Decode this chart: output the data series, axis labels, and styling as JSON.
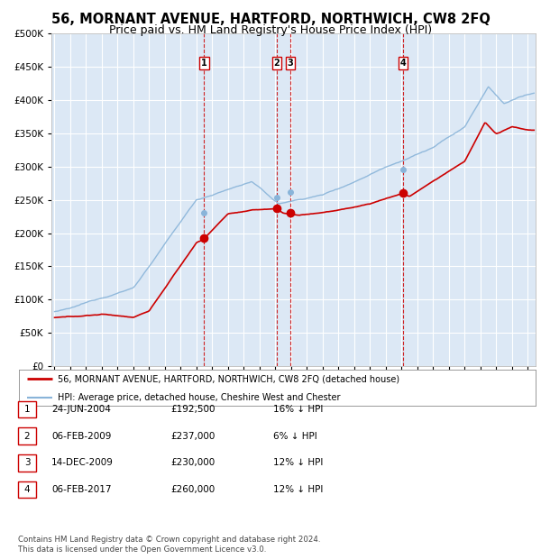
{
  "title": "56, MORNANT AVENUE, HARTFORD, NORTHWICH, CW8 2FQ",
  "subtitle": "Price paid vs. HM Land Registry's House Price Index (HPI)",
  "title_fontsize": 10.5,
  "subtitle_fontsize": 9,
  "background_color": "#ffffff",
  "plot_bg_color": "#dce8f5",
  "grid_color": "#ffffff",
  "red_line_color": "#cc0000",
  "blue_line_color": "#89b4d9",
  "legend_entries": [
    "56, MORNANT AVENUE, HARTFORD, NORTHWICH, CW8 2FQ (detached house)",
    "HPI: Average price, detached house, Cheshire West and Chester"
  ],
  "sale_points": [
    {
      "label": "1",
      "date_decimal": 2004.48,
      "price": 192500
    },
    {
      "label": "2",
      "date_decimal": 2009.09,
      "price": 237000
    },
    {
      "label": "3",
      "date_decimal": 2009.95,
      "price": 230000
    },
    {
      "label": "4",
      "date_decimal": 2017.09,
      "price": 260000
    }
  ],
  "hpi_at_sales": [
    {
      "date_decimal": 2004.48,
      "hpi": 230000
    },
    {
      "date_decimal": 2009.09,
      "hpi": 253000
    },
    {
      "date_decimal": 2009.95,
      "hpi": 262000
    },
    {
      "date_decimal": 2017.09,
      "hpi": 296000
    }
  ],
  "table_rows": [
    {
      "num": "1",
      "date": "24-JUN-2004",
      "price": "£192,500",
      "hpi": "16% ↓ HPI"
    },
    {
      "num": "2",
      "date": "06-FEB-2009",
      "price": "£237,000",
      "hpi": "6% ↓ HPI"
    },
    {
      "num": "3",
      "date": "14-DEC-2009",
      "price": "£230,000",
      "hpi": "12% ↓ HPI"
    },
    {
      "num": "4",
      "date": "06-FEB-2017",
      "price": "£260,000",
      "hpi": "12% ↓ HPI"
    }
  ],
  "footer": "Contains HM Land Registry data © Crown copyright and database right 2024.\nThis data is licensed under the Open Government Licence v3.0.",
  "ylim": [
    0,
    500000
  ],
  "ytick_labels": [
    "£0",
    "£50K",
    "£100K",
    "£150K",
    "£200K",
    "£250K",
    "£300K",
    "£350K",
    "£400K",
    "£450K",
    "£500K"
  ],
  "yticks": [
    0,
    50000,
    100000,
    150000,
    200000,
    250000,
    300000,
    350000,
    400000,
    450000,
    500000
  ],
  "xlim_start": 1994.8,
  "xlim_end": 2025.5
}
